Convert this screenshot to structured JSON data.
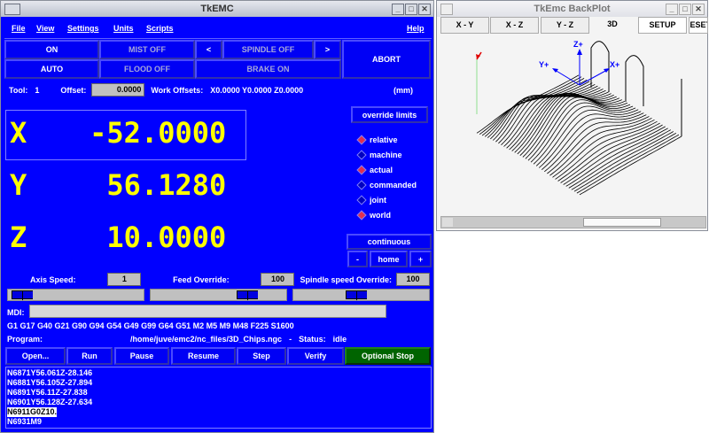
{
  "main_window": {
    "title": "TkEMC",
    "menu": [
      "File",
      "View",
      "Settings",
      "Units",
      "Scripts"
    ],
    "help": "Help",
    "buttons": {
      "on": "ON",
      "mist": "MIST OFF",
      "spindle_dec": "<",
      "spindle": "SPINDLE OFF",
      "spindle_inc": ">",
      "abort": "ABORT",
      "auto": "AUTO",
      "flood": "FLOOD OFF",
      "brake": "BRAKE ON"
    },
    "tool_label": "Tool:",
    "tool_value": "1",
    "offset_label": "Offset:",
    "offset_value": "0.0000",
    "work_offsets_label": "Work Offsets:",
    "work_offsets": "X0.0000 Y0.0000 Z0.0000",
    "units": "(mm)",
    "dro": [
      {
        "axis": "X",
        "value": "-52.0000"
      },
      {
        "axis": "Y",
        "value": "56.1280"
      },
      {
        "axis": "Z",
        "value": "10.0000"
      }
    ],
    "override_limits": "override limits",
    "radios": [
      {
        "label": "relative",
        "on": true
      },
      {
        "label": "machine",
        "on": false
      },
      {
        "label": "actual",
        "on": true
      },
      {
        "label": "commanded",
        "on": false
      },
      {
        "label": "joint",
        "on": false
      },
      {
        "label": "world",
        "on": true
      }
    ],
    "jog": {
      "mode": "continuous",
      "minus": "-",
      "home": "home",
      "plus": "+"
    },
    "axis_speed_label": "Axis Speed:",
    "axis_speed": "1",
    "feed_override_label": "Feed Override:",
    "feed_override": "100",
    "spindle_override_label": "Spindle speed Override:",
    "spindle_override": "100",
    "sliders": {
      "axis_speed": 0.02,
      "feed_override": 0.75,
      "spindle_override": 0.45
    },
    "mdi_label": "MDI:",
    "mdi_value": "",
    "gcodes": "G1 G17 G40 G21 G90 G94 G54 G49 G99 G64 G51 M2 M5 M9 M48 F225 S1600",
    "program_label": "Program:",
    "program_path": "/home/juve/emc2/nc_files/3D_Chips.ngc",
    "status_sep": "-",
    "status_label": "Status:",
    "status": "idle",
    "actions": [
      "Open...",
      "Run",
      "Pause",
      "Resume",
      "Step",
      "Verify",
      "Optional Stop"
    ],
    "program_lines": [
      "N6871Y56.061Z-28.146",
      "N6881Y56.105Z-27.894",
      "N6891Y56.11Z-27.838",
      "N6901Y56.128Z-27.634",
      "N6911G0Z10.",
      "N6931M9"
    ],
    "current_line_index": 4
  },
  "backplot": {
    "title": "TkEmc BackPlot",
    "tabs": [
      "X - Y",
      "X - Z",
      "Y - Z",
      "3D",
      "SETUP",
      "RESET"
    ],
    "axis_labels": {
      "z": "Z+",
      "y": "Y+",
      "x": "X+"
    }
  },
  "colors": {
    "panel": "#0000ff",
    "optional_stop": "#006400",
    "dro": "#ffff00"
  }
}
